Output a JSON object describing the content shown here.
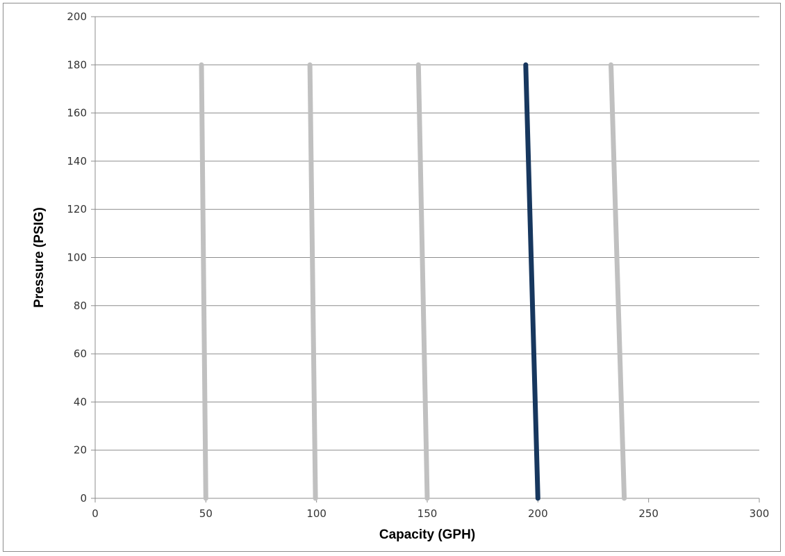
{
  "chart_data": {
    "type": "line",
    "title": "",
    "xlabel": "Capacity (GPH)",
    "ylabel": "Pressure (PSIG)",
    "xlim": [
      0,
      300
    ],
    "ylim": [
      0,
      200
    ],
    "x_ticks": [
      0,
      50,
      100,
      150,
      200,
      250,
      300
    ],
    "y_ticks": [
      0,
      20,
      40,
      60,
      80,
      100,
      120,
      140,
      160,
      180,
      200
    ],
    "grid": "horizontal",
    "legend": "none",
    "series": [
      {
        "x": [
          48,
          50
        ],
        "y": [
          180,
          0
        ],
        "color": "#c0c0c0"
      },
      {
        "x": [
          97,
          99.5
        ],
        "y": [
          180,
          0
        ],
        "color": "#c0c0c0"
      },
      {
        "x": [
          146,
          150
        ],
        "y": [
          180,
          0
        ],
        "color": "#c0c0c0"
      },
      {
        "x": [
          194.5,
          200
        ],
        "y": [
          180,
          0
        ],
        "color": "#17375e"
      },
      {
        "x": [
          233,
          239
        ],
        "y": [
          180,
          0
        ],
        "color": "#c0c0c0"
      }
    ]
  }
}
